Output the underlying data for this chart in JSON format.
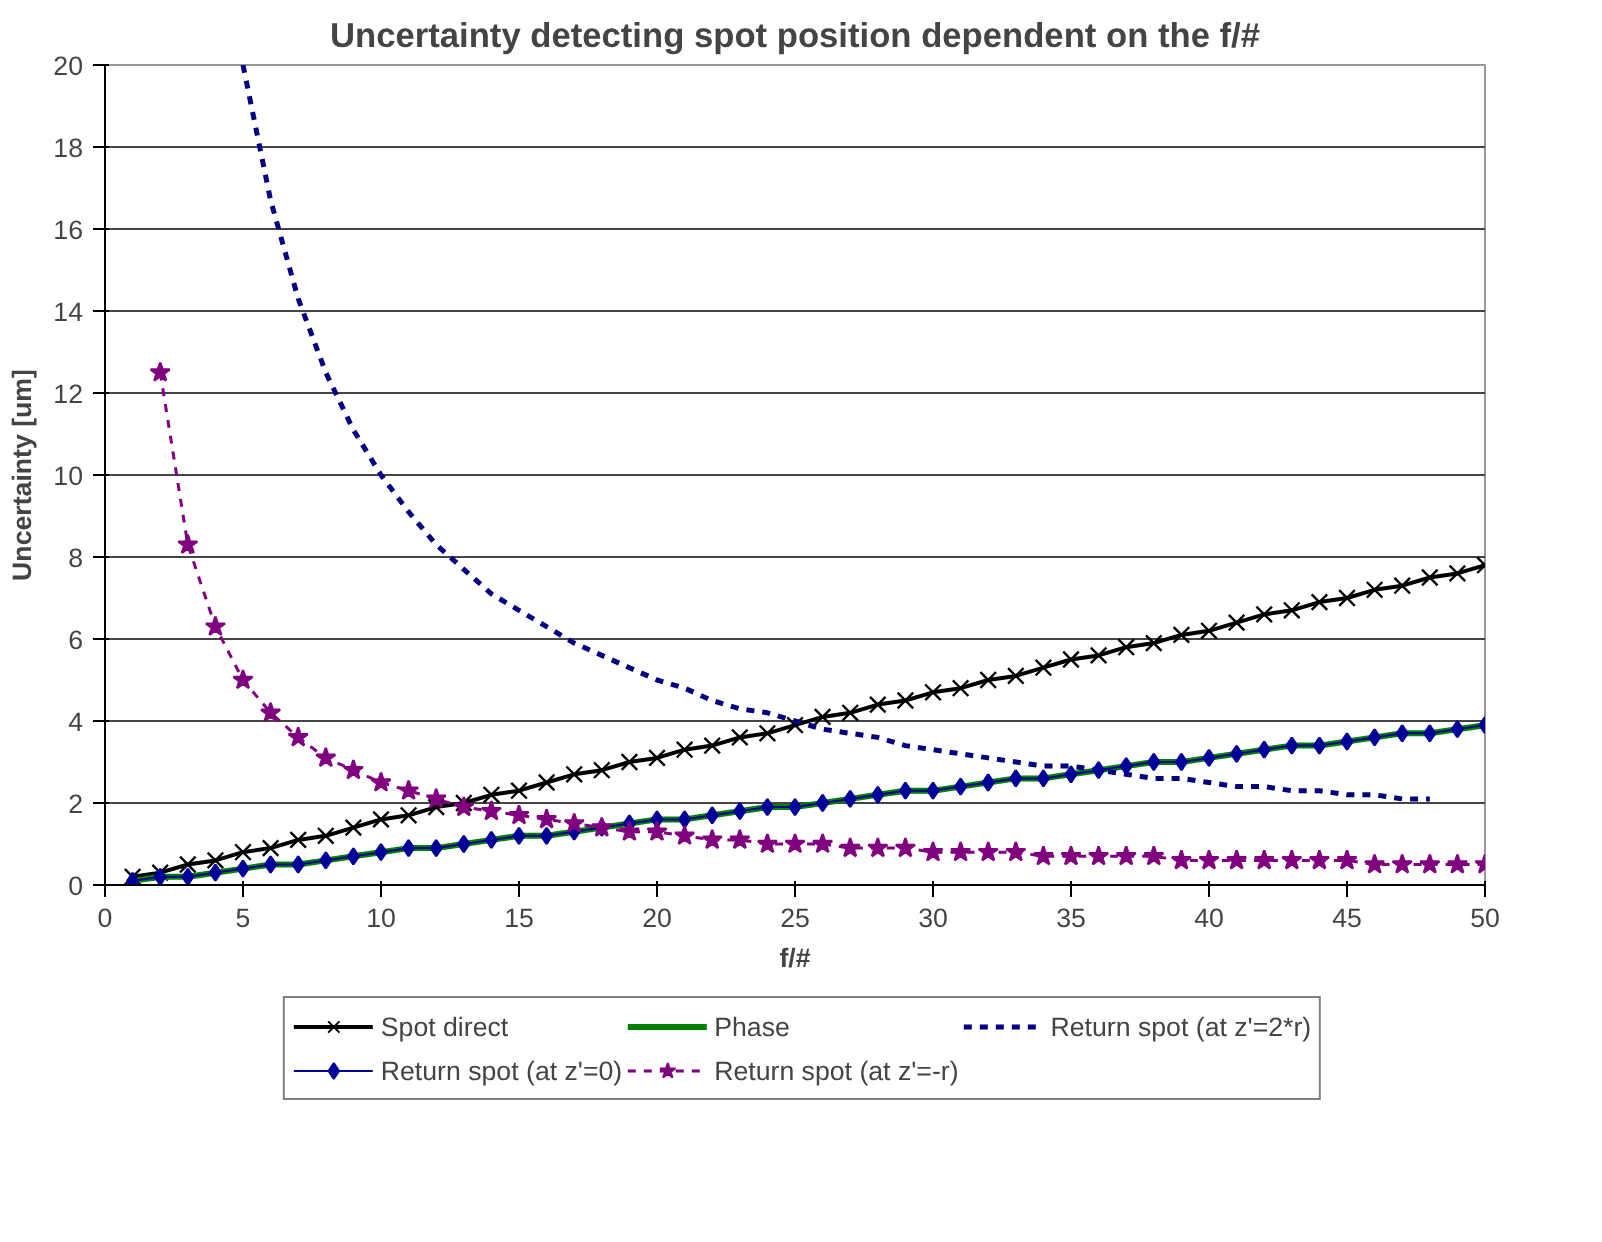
{
  "chart_data": {
    "type": "line",
    "title": "Uncertainty detecting spot position dependent on the f/#",
    "xlabel": "f/#",
    "ylabel": "Uncertainty [um]",
    "xlim": [
      0,
      50
    ],
    "ylim": [
      0,
      20
    ],
    "xticks": [
      0,
      5,
      10,
      15,
      20,
      25,
      30,
      35,
      40,
      45,
      50
    ],
    "yticks": [
      0,
      2,
      4,
      6,
      8,
      10,
      12,
      14,
      16,
      18,
      20
    ],
    "grid": "y",
    "legend": "bottom",
    "series": [
      {
        "name": "Spot direct",
        "color": "#000000",
        "marker": "cross",
        "line_style": "solid",
        "x": [
          1,
          2,
          3,
          4,
          5,
          6,
          7,
          8,
          9,
          10,
          11,
          12,
          13,
          14,
          15,
          16,
          17,
          18,
          19,
          20,
          21,
          22,
          23,
          24,
          25,
          26,
          27,
          28,
          29,
          30,
          31,
          32,
          33,
          34,
          35,
          36,
          37,
          38,
          39,
          40,
          41,
          42,
          43,
          44,
          45,
          46,
          47,
          48,
          49,
          50
        ],
        "values": [
          0.2,
          0.3,
          0.5,
          0.6,
          0.8,
          0.9,
          1.1,
          1.2,
          1.4,
          1.6,
          1.7,
          1.9,
          2.0,
          2.2,
          2.3,
          2.5,
          2.7,
          2.8,
          3.0,
          3.1,
          3.3,
          3.4,
          3.6,
          3.7,
          3.9,
          4.1,
          4.2,
          4.4,
          4.5,
          4.7,
          4.8,
          5.0,
          5.1,
          5.3,
          5.5,
          5.6,
          5.8,
          5.9,
          6.1,
          6.2,
          6.4,
          6.6,
          6.7,
          6.9,
          7.0,
          7.2,
          7.3,
          7.5,
          7.6,
          7.8
        ]
      },
      {
        "name": "Phase",
        "color": "#008000",
        "marker": "none",
        "line_style": "solid",
        "x": [
          1,
          2,
          3,
          4,
          5,
          6,
          7,
          8,
          9,
          10,
          11,
          12,
          13,
          14,
          15,
          16,
          17,
          18,
          19,
          20,
          21,
          22,
          23,
          24,
          25,
          26,
          27,
          28,
          29,
          30,
          31,
          32,
          33,
          34,
          35,
          36,
          37,
          38,
          39,
          40,
          41,
          42,
          43,
          44,
          45,
          46,
          47,
          48,
          49,
          50
        ],
        "values": [
          0.1,
          0.2,
          0.2,
          0.3,
          0.4,
          0.5,
          0.5,
          0.6,
          0.7,
          0.8,
          0.9,
          0.9,
          1.0,
          1.1,
          1.2,
          1.2,
          1.3,
          1.4,
          1.5,
          1.6,
          1.6,
          1.7,
          1.8,
          1.9,
          1.9,
          2.0,
          2.1,
          2.2,
          2.3,
          2.3,
          2.4,
          2.5,
          2.6,
          2.6,
          2.7,
          2.8,
          2.9,
          3.0,
          3.0,
          3.1,
          3.2,
          3.3,
          3.4,
          3.4,
          3.5,
          3.6,
          3.7,
          3.7,
          3.8,
          3.9
        ]
      },
      {
        "name": "Return spot (at z'=2*r)",
        "color": "#000080",
        "marker": "none",
        "line_style": "dashed",
        "x": [
          5,
          6,
          7,
          8,
          9,
          10,
          11,
          12,
          13,
          14,
          15,
          16,
          17,
          18,
          19,
          20,
          21,
          22,
          23,
          24,
          25,
          26,
          27,
          28,
          29,
          30,
          31,
          32,
          33,
          34,
          35,
          36,
          37,
          38,
          39,
          40,
          41,
          42,
          43,
          44,
          45,
          46,
          47,
          48
        ],
        "values": [
          20,
          16.7,
          14.3,
          12.5,
          11.1,
          10,
          9.1,
          8.3,
          7.7,
          7.1,
          6.7,
          6.3,
          5.9,
          5.6,
          5.3,
          5.0,
          4.8,
          4.5,
          4.3,
          4.2,
          4.0,
          3.8,
          3.7,
          3.6,
          3.4,
          3.3,
          3.2,
          3.1,
          3.0,
          2.9,
          2.9,
          2.8,
          2.7,
          2.6,
          2.6,
          2.5,
          2.4,
          2.4,
          2.3,
          2.3,
          2.2,
          2.2,
          2.1,
          2.1
        ]
      },
      {
        "name": "Return spot (at z'=0)",
        "color": "#000099",
        "marker": "diamond",
        "line_style": "solid",
        "x": [
          1,
          2,
          3,
          4,
          5,
          6,
          7,
          8,
          9,
          10,
          11,
          12,
          13,
          14,
          15,
          16,
          17,
          18,
          19,
          20,
          21,
          22,
          23,
          24,
          25,
          26,
          27,
          28,
          29,
          30,
          31,
          32,
          33,
          34,
          35,
          36,
          37,
          38,
          39,
          40,
          41,
          42,
          43,
          44,
          45,
          46,
          47,
          48,
          49,
          50
        ],
        "values": [
          0.1,
          0.2,
          0.2,
          0.3,
          0.4,
          0.5,
          0.5,
          0.6,
          0.7,
          0.8,
          0.9,
          0.9,
          1.0,
          1.1,
          1.2,
          1.2,
          1.3,
          1.4,
          1.5,
          1.6,
          1.6,
          1.7,
          1.8,
          1.9,
          1.9,
          2.0,
          2.1,
          2.2,
          2.3,
          2.3,
          2.4,
          2.5,
          2.6,
          2.6,
          2.7,
          2.8,
          2.9,
          3.0,
          3.0,
          3.1,
          3.2,
          3.3,
          3.4,
          3.4,
          3.5,
          3.6,
          3.7,
          3.7,
          3.8,
          3.9
        ]
      },
      {
        "name": "Return spot (at z'=-r)",
        "color": "#800080",
        "marker": "star",
        "line_style": "dashed",
        "x": [
          2,
          3,
          4,
          5,
          6,
          7,
          8,
          9,
          10,
          11,
          12,
          13,
          14,
          15,
          16,
          17,
          18,
          19,
          20,
          21,
          22,
          23,
          24,
          25,
          26,
          27,
          28,
          29,
          30,
          31,
          32,
          33,
          34,
          35,
          36,
          37,
          38,
          39,
          40,
          41,
          42,
          43,
          44,
          45,
          46,
          47,
          48,
          49,
          50
        ],
        "values": [
          12.5,
          8.3,
          6.3,
          5.0,
          4.2,
          3.6,
          3.1,
          2.8,
          2.5,
          2.3,
          2.1,
          1.9,
          1.8,
          1.7,
          1.6,
          1.5,
          1.4,
          1.3,
          1.3,
          1.2,
          1.1,
          1.1,
          1.0,
          1.0,
          1.0,
          0.9,
          0.9,
          0.9,
          0.8,
          0.8,
          0.8,
          0.8,
          0.7,
          0.7,
          0.7,
          0.7,
          0.7,
          0.6,
          0.6,
          0.6,
          0.6,
          0.6,
          0.6,
          0.6,
          0.5,
          0.5,
          0.5,
          0.5,
          0.5
        ]
      }
    ]
  }
}
